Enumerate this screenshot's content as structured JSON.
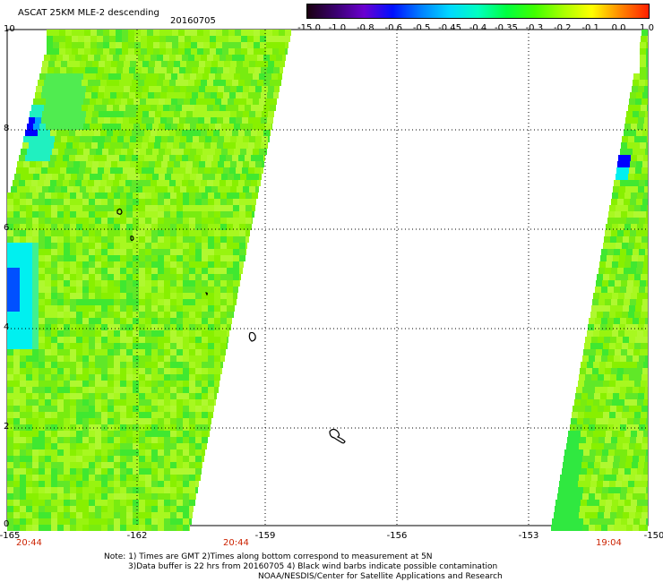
{
  "header": {
    "title": "ASCAT 25KM MLE-2 descending",
    "date": "20160705"
  },
  "colorbar": {
    "labels": [
      "-15.0",
      "-1.0",
      "-0.8",
      "-0.6",
      "-0.5",
      "-0.45",
      "-0.4",
      "-0.35",
      "-0.3",
      "-0.2",
      "-0.1",
      "0.0",
      "1.0"
    ],
    "colors": [
      "#1a0010",
      "#3a0070",
      "#6a00d0",
      "#0010ff",
      "#0080ff",
      "#00d8ff",
      "#00ffc0",
      "#00ff40",
      "#40ff00",
      "#a8ff00",
      "#ffff00",
      "#ff8800",
      "#ff2000"
    ]
  },
  "axes": {
    "y_ticks": [
      "10",
      "8",
      "6",
      "4",
      "2",
      "0"
    ],
    "x_ticks": [
      "-165",
      "-162",
      "-159",
      "-156",
      "-153",
      "-150"
    ]
  },
  "times": {
    "left": "20:44",
    "middle": "20:44",
    "right": "19:04"
  },
  "notes": {
    "line1": "Note: 1) Times are GMT 2)Times along bottom correspond to measurement at 5N",
    "line2": "3)Data buffer is 22 hrs from 20160705 4) Black wind barbs indicate possible contamination",
    "line3": "NOAA/NESDIS/Center for Satellite Applications and Research"
  },
  "palette": {
    "green_main": "#88f000",
    "green_light": "#a8f820",
    "green_dark": "#40e830",
    "cyan": "#00f0f0",
    "blue": "#0000ff"
  }
}
